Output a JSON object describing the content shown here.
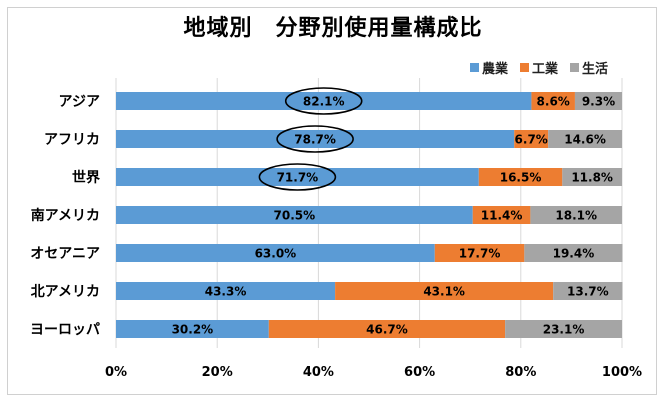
{
  "chart_data": {
    "type": "bar",
    "orientation": "horizontal",
    "stacked": "percent",
    "title": "地域別　分野別使用量構成比",
    "categories": [
      "アジア",
      "アフリカ",
      "世界",
      "南アメリカ",
      "オセアニア",
      "北アメリカ",
      "ヨーロッパ"
    ],
    "series": [
      {
        "name": "農業",
        "color": "#5b9bd5",
        "values": [
          82.1,
          78.7,
          71.7,
          70.5,
          63.0,
          43.3,
          30.2
        ],
        "labels": [
          "82.1%",
          "78.7%",
          "71.7%",
          "70.5%",
          "63.0%",
          "43.3%",
          "30.2%"
        ]
      },
      {
        "name": "工業",
        "color": "#ed7d31",
        "values": [
          8.6,
          6.7,
          16.5,
          11.4,
          17.7,
          43.1,
          46.7
        ],
        "labels": [
          "8.6%",
          "6.7%",
          "16.5%",
          "11.4%",
          "17.7%",
          "43.1%",
          "46.7%"
        ]
      },
      {
        "name": "生活",
        "color": "#a5a5a5",
        "values": [
          9.3,
          14.6,
          11.8,
          18.1,
          19.4,
          13.7,
          23.1
        ],
        "labels": [
          "9.3%",
          "14.6%",
          "11.8%",
          "18.1%",
          "19.4%",
          "13.7%",
          "23.1%"
        ]
      }
    ],
    "xticks": [
      "0%",
      "20%",
      "40%",
      "60%",
      "80%",
      "100%"
    ],
    "xlim": [
      0,
      100
    ],
    "grid": true,
    "legend": "top-right",
    "annotations": [
      {
        "shape": "ellipse",
        "category": "アジア",
        "series": "農業"
      },
      {
        "shape": "ellipse",
        "category": "アフリカ",
        "series": "農業"
      },
      {
        "shape": "ellipse",
        "category": "世界",
        "series": "農業"
      }
    ]
  }
}
